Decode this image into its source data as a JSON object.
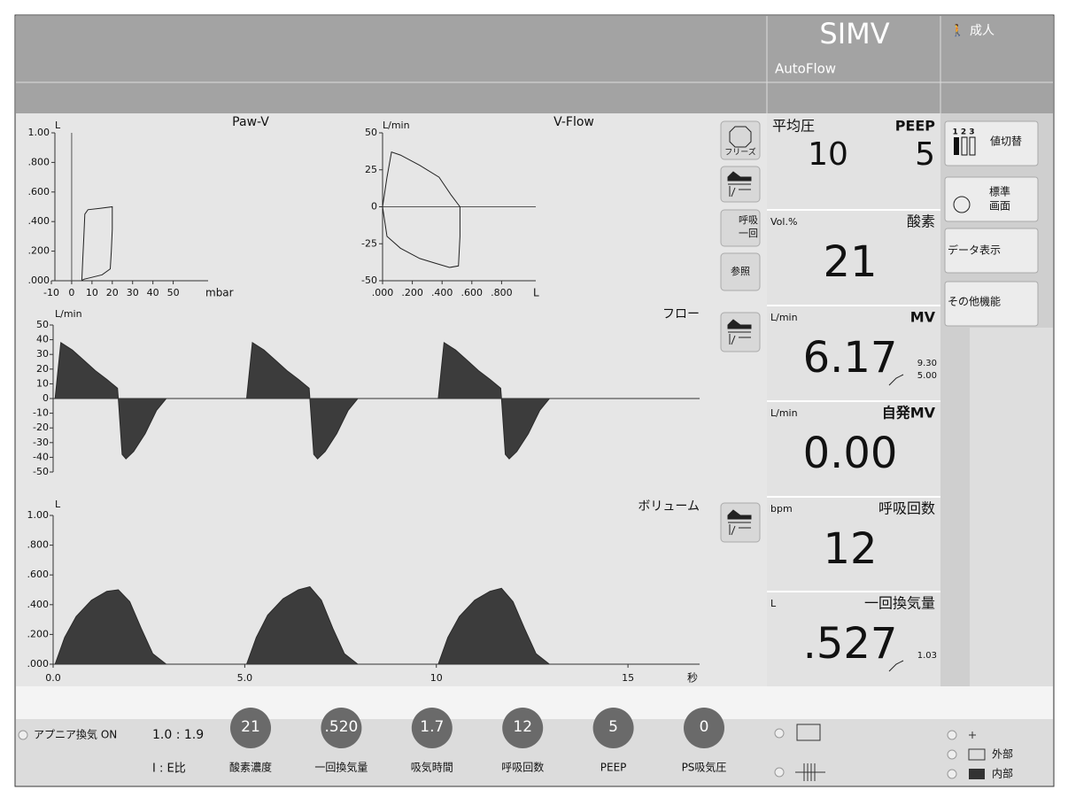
{
  "header": {
    "mode": "SIMV",
    "submode": "AutoFlow",
    "patient": "成人"
  },
  "loops": [
    {
      "type": "loop",
      "title": "Paw-V",
      "x_unit": "mbar",
      "y_unit": "L",
      "xlim": [
        -10,
        65
      ],
      "ylim": [
        0,
        1
      ],
      "xticks": [
        -10,
        0,
        10,
        20,
        30,
        40,
        50
      ],
      "yticks": [
        {
          "value": 1,
          "label": "1.00"
        },
        {
          "value": 0.8,
          "label": ".800"
        },
        {
          "value": 0.6,
          "label": ".600"
        },
        {
          "value": 0.4,
          "label": ".400"
        },
        {
          "value": 0.2,
          "label": ".200"
        },
        {
          "value": 0,
          "label": ".000"
        }
      ],
      "x": [
        5,
        5.5,
        6,
        6.5,
        8,
        14,
        20,
        20,
        19.5,
        19,
        15,
        9,
        6,
        5
      ],
      "y": [
        0,
        0.15,
        0.3,
        0.45,
        0.48,
        0.49,
        0.5,
        0.35,
        0.2,
        0.08,
        0.04,
        0.02,
        0.01,
        0
      ]
    },
    {
      "type": "loop",
      "title": "V-Flow",
      "x_unit": "L",
      "y_unit": "L/min",
      "xlim": [
        0,
        1
      ],
      "ylim": [
        -50,
        50
      ],
      "xticks": [
        {
          "value": 0,
          "label": ".000"
        },
        {
          "value": 0.2,
          "label": ".200"
        },
        {
          "value": 0.4,
          "label": ".400"
        },
        {
          "value": 0.6,
          "label": ".600"
        },
        {
          "value": 0.8,
          "label": ".800"
        }
      ],
      "yticks": [
        50,
        25,
        0,
        -25,
        -50
      ],
      "x": [
        0.03,
        0.06,
        0.12,
        0.25,
        0.38,
        0.46,
        0.52,
        0.52,
        0.51,
        0.45,
        0.35,
        0.25,
        0.12,
        0.03,
        0,
        0.03
      ],
      "y": [
        20,
        37,
        35,
        28,
        20,
        8,
        0,
        -20,
        -40,
        -41,
        -38,
        -35,
        -28,
        -20,
        0,
        20
      ]
    }
  ],
  "time_axis": {
    "xlim": [
      0,
      16.8
    ],
    "xticks": [
      {
        "value": 0,
        "label": "0.0"
      },
      {
        "value": 5,
        "label": "5.0"
      },
      10,
      15
    ],
    "unit": "秒"
  },
  "waveforms": [
    {
      "type": "area",
      "title": "フロー",
      "y_unit": "L/min",
      "ylim": [
        -50,
        50
      ],
      "yticks": [
        50,
        40,
        30,
        20,
        10,
        0,
        -10,
        -20,
        -30,
        -40,
        -50
      ],
      "x": [
        0,
        0.05,
        0.2,
        0.5,
        0.8,
        1.1,
        1.4,
        1.68,
        1.7,
        1.8,
        1.9,
        2.1,
        2.4,
        2.7,
        2.95,
        5,
        5.05,
        5.2,
        5.5,
        5.8,
        6.1,
        6.4,
        6.68,
        6.7,
        6.8,
        6.9,
        7.1,
        7.4,
        7.7,
        7.95,
        10,
        10.05,
        10.2,
        10.5,
        10.8,
        11.1,
        11.4,
        11.68,
        11.7,
        11.8,
        11.9,
        12.1,
        12.4,
        12.7,
        12.95,
        16.8
      ],
      "values": [
        0,
        0,
        38,
        33,
        26,
        19,
        13,
        7,
        0,
        -38,
        -41,
        -36,
        -24,
        -8,
        0,
        0,
        0,
        38,
        33,
        26,
        19,
        13,
        7,
        0,
        -38,
        -41,
        -36,
        -24,
        -8,
        0,
        0,
        0,
        38,
        33,
        26,
        19,
        13,
        7,
        0,
        -38,
        -41,
        -36,
        -24,
        -8,
        0,
        0
      ]
    },
    {
      "type": "area",
      "title": "ボリューム",
      "y_unit": "L",
      "ylim": [
        0,
        1
      ],
      "yticks": [
        {
          "value": 1,
          "label": "1.00"
        },
        {
          "value": 0.8,
          "label": ".800"
        },
        {
          "value": 0.6,
          "label": ".600"
        },
        {
          "value": 0.4,
          "label": ".400"
        },
        {
          "value": 0.2,
          "label": ".200"
        },
        {
          "value": 0,
          "label": ".000"
        }
      ],
      "x": [
        0,
        0.05,
        0.3,
        0.6,
        1.0,
        1.4,
        1.7,
        2.0,
        2.3,
        2.6,
        2.95,
        5,
        5.05,
        5.3,
        5.6,
        6.0,
        6.4,
        6.7,
        7.0,
        7.3,
        7.6,
        7.95,
        10,
        10.05,
        10.3,
        10.6,
        11.0,
        11.4,
        11.7,
        12.0,
        12.3,
        12.6,
        12.95,
        16.8
      ],
      "values": [
        0,
        0,
        0.18,
        0.32,
        0.43,
        0.49,
        0.5,
        0.42,
        0.24,
        0.07,
        0,
        0,
        0,
        0.18,
        0.33,
        0.44,
        0.5,
        0.52,
        0.43,
        0.24,
        0.07,
        0,
        0,
        0,
        0.18,
        0.32,
        0.43,
        0.49,
        0.51,
        0.42,
        0.24,
        0.07,
        0,
        0
      ]
    }
  ],
  "side_buttons": {
    "freeze": "フリーズ",
    "breath": [
      "呼吸",
      "一回"
    ],
    "reference": "参照"
  },
  "pressure": {
    "mean_label": "平均圧",
    "mean": "10",
    "peep_label": "PEEP",
    "peep": "5"
  },
  "readings": [
    {
      "unit": "Vol.%",
      "label": "酸素",
      "value": "21"
    },
    {
      "unit": "L/min",
      "label": "MV",
      "value": "6.17",
      "limits": [
        "9.30",
        "5.00"
      ]
    },
    {
      "unit": "L/min",
      "label": "自発MV",
      "value": "0.00"
    },
    {
      "unit": "bpm",
      "label": "呼吸回数",
      "value": "12"
    },
    {
      "unit": "L",
      "label": "一回換気量",
      "value": ".527",
      "limits": [
        "1.03"
      ]
    }
  ],
  "menu": {
    "icon": "1 2 3",
    "items": [
      [
        "値切替"
      ],
      [
        "標準",
        "画面"
      ],
      [
        "データ表示"
      ],
      [
        "その他機能"
      ]
    ]
  },
  "bottom": {
    "apnea": "アプニア換気 ON",
    "ie_ratio": "1.0 : 1.9",
    "ie_label": "I : E比",
    "settings": [
      {
        "value": "21",
        "label": "酸素濃度"
      },
      {
        "value": ".520",
        "label": "一回換気量"
      },
      {
        "value": "1.7",
        "label": "吸気時間"
      },
      {
        "value": "12",
        "label": "呼吸回数"
      },
      {
        "value": "5",
        "label": "PEEP"
      },
      {
        "value": "0",
        "label": "PS吸気圧"
      }
    ],
    "external": "外部",
    "internal": "内部"
  }
}
